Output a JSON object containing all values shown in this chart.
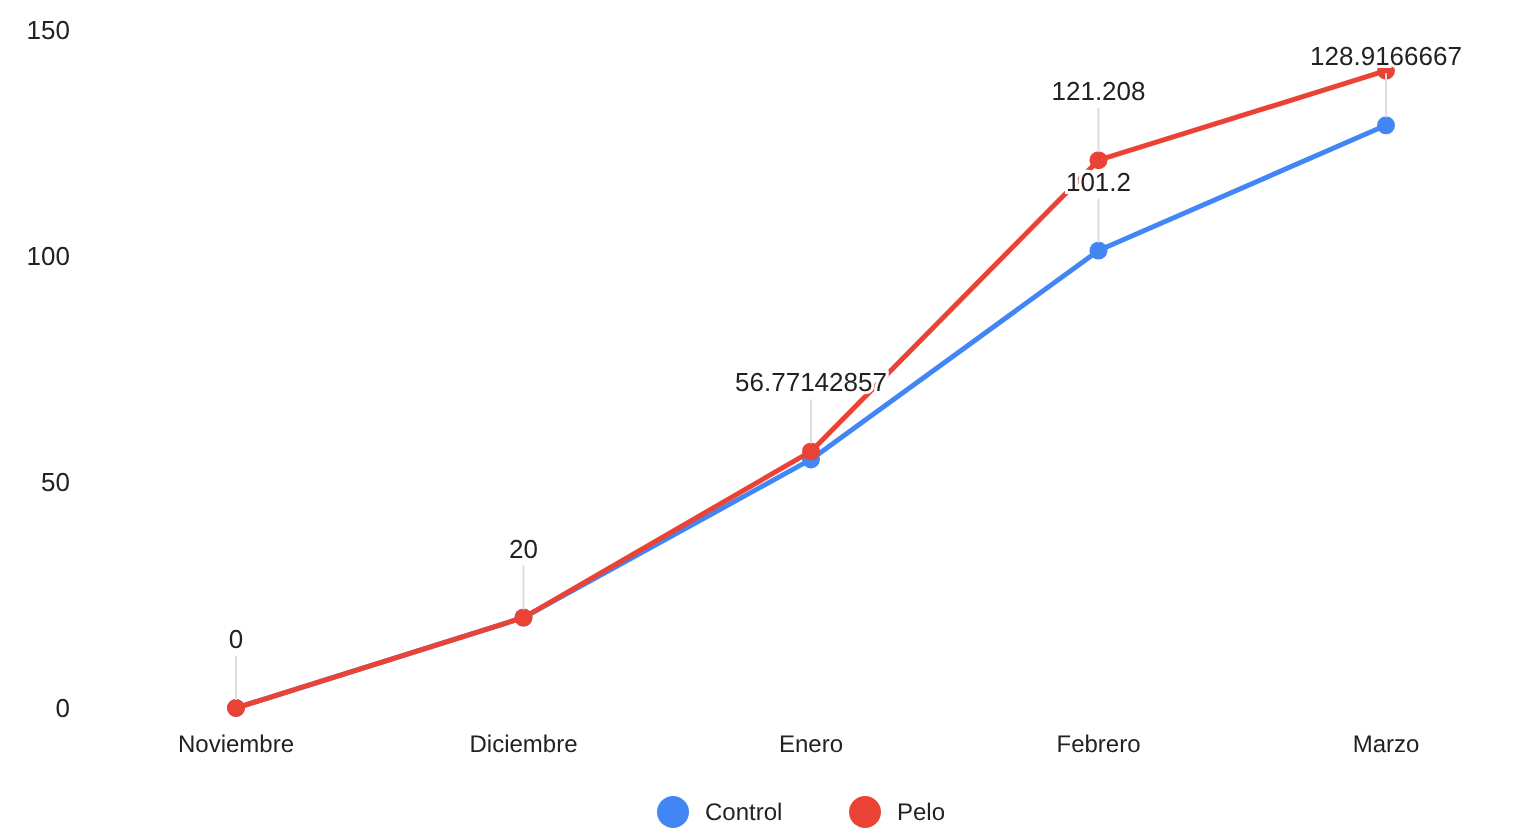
{
  "chart_data": {
    "type": "line",
    "categories": [
      "Noviembre",
      "Diciembre",
      "Enero",
      "Febrero",
      "Marzo"
    ],
    "series": [
      {
        "name": "Control",
        "color": "#4285f4",
        "values": [
          0,
          20,
          55,
          101.2,
          128.9166667
        ],
        "value_labels": [
          "0",
          "20",
          null,
          "101.2",
          "128.9166667"
        ]
      },
      {
        "name": "Pelo",
        "color": "#ea4335",
        "values": [
          0,
          20,
          56.77142857,
          121.208,
          141
        ],
        "value_labels": [
          null,
          null,
          "56.77142857",
          "121.208",
          null
        ]
      }
    ],
    "ylim": [
      0,
      150
    ],
    "yticks": [
      0,
      50,
      100,
      150
    ],
    "grid": false,
    "legend": "bottom",
    "marker": "circle",
    "line_style": "solid"
  }
}
